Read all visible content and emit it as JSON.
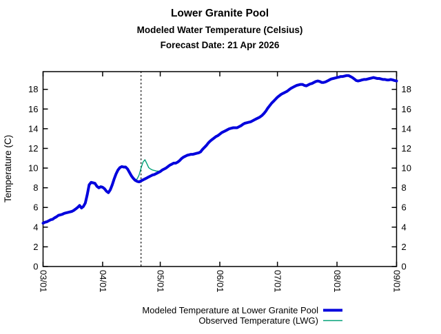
{
  "chart_data": {
    "type": "line",
    "title": "Lower Granite Pool",
    "subtitle": "Modeled Water Temperature (Celsius)",
    "forecast_label": "Forecast Date: 21 Apr 2026",
    "y_axis_label": "Temperature (C)",
    "ylim": [
      0,
      19.8
    ],
    "y_ticks": [
      0,
      2,
      4,
      6,
      8,
      10,
      12,
      14,
      16,
      18
    ],
    "x_tick_labels": [
      "03/01",
      "04/01",
      "05/01",
      "06/01",
      "07/01",
      "08/01",
      "09/01"
    ],
    "x_tick_day_index": [
      0,
      31,
      61,
      92,
      122,
      153,
      184
    ],
    "x_total_days": 184,
    "x_interval": "daily",
    "grid": "off",
    "legend_position": "below-right",
    "forecast_marker": {
      "day_index": 51,
      "style": "dotted-vertical-line",
      "color": "#000000"
    },
    "series": [
      {
        "name": "Modeled Temperature at Lower Granite Pool",
        "color": "#0000dd",
        "width": 4,
        "start_day": 0,
        "values": [
          4.4,
          4.5,
          4.55,
          4.65,
          4.75,
          4.8,
          4.95,
          5.05,
          5.2,
          5.25,
          5.3,
          5.4,
          5.45,
          5.5,
          5.55,
          5.6,
          5.7,
          5.85,
          6.0,
          6.2,
          5.95,
          6.1,
          6.45,
          7.3,
          8.3,
          8.55,
          8.5,
          8.45,
          8.15,
          8.0,
          8.1,
          8.05,
          7.9,
          7.65,
          7.5,
          7.8,
          8.3,
          8.9,
          9.4,
          9.8,
          10.05,
          10.15,
          10.1,
          10.1,
          9.9,
          9.55,
          9.2,
          8.95,
          8.75,
          8.65,
          8.6,
          8.7,
          8.8,
          8.9,
          9.0,
          9.1,
          9.2,
          9.3,
          9.35,
          9.45,
          9.55,
          9.65,
          9.8,
          9.9,
          10.0,
          10.15,
          10.3,
          10.4,
          10.5,
          10.5,
          10.6,
          10.75,
          10.95,
          11.1,
          11.2,
          11.3,
          11.35,
          11.4,
          11.4,
          11.45,
          11.5,
          11.55,
          11.65,
          11.9,
          12.1,
          12.3,
          12.55,
          12.75,
          12.9,
          13.05,
          13.2,
          13.3,
          13.45,
          13.6,
          13.7,
          13.8,
          13.9,
          14.0,
          14.05,
          14.1,
          14.1,
          14.1,
          14.2,
          14.3,
          14.45,
          14.55,
          14.6,
          14.65,
          14.7,
          14.8,
          14.9,
          15.0,
          15.1,
          15.2,
          15.35,
          15.55,
          15.8,
          16.1,
          16.35,
          16.6,
          16.8,
          17.0,
          17.2,
          17.35,
          17.5,
          17.6,
          17.7,
          17.8,
          17.95,
          18.1,
          18.2,
          18.3,
          18.4,
          18.45,
          18.5,
          18.5,
          18.4,
          18.35,
          18.45,
          18.55,
          18.6,
          18.7,
          18.8,
          18.85,
          18.8,
          18.7,
          18.7,
          18.75,
          18.85,
          18.95,
          19.05,
          19.1,
          19.15,
          19.2,
          19.25,
          19.3,
          19.3,
          19.35,
          19.4,
          19.4,
          19.3,
          19.2,
          19.05,
          18.9,
          18.85,
          18.9,
          18.95,
          19.0,
          19.0,
          19.05,
          19.1,
          19.15,
          19.2,
          19.15,
          19.1,
          19.1,
          19.05,
          19.0,
          19.0,
          18.95,
          18.95,
          19.0,
          18.95,
          18.9,
          18.85
        ]
      },
      {
        "name": "Observed Temperature (LWG)",
        "color": "#00a077",
        "width": 1.4,
        "start_day": 0,
        "values": [
          4.4,
          4.5,
          4.55,
          4.65,
          4.75,
          4.8,
          4.95,
          5.05,
          5.2,
          5.25,
          5.3,
          5.4,
          5.45,
          5.5,
          5.55,
          5.6,
          5.7,
          5.85,
          6.0,
          6.2,
          5.95,
          6.1,
          6.45,
          7.35,
          8.35,
          8.6,
          8.55,
          8.5,
          8.25,
          8.1,
          8.2,
          8.15,
          8.0,
          7.7,
          7.55,
          7.85,
          8.35,
          8.95,
          9.45,
          9.85,
          10.1,
          10.2,
          10.2,
          10.2,
          10.0,
          9.6,
          9.25,
          9.0,
          8.8,
          8.9,
          9.3,
          10.0,
          10.6,
          10.85,
          10.45,
          10.05,
          9.9,
          9.8,
          9.75,
          9.7,
          9.7
        ]
      }
    ]
  },
  "colors": {
    "background": "#ffffff",
    "axis": "#000000",
    "text": "#000000"
  }
}
